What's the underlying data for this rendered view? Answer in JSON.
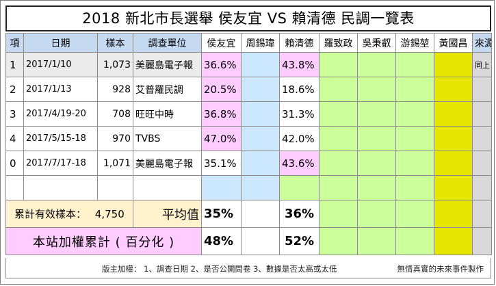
{
  "title": "2018  新北市長選舉   侯友宜 VS 賴清德   民調一覽表",
  "headers": [
    "項",
    "日期",
    "樣本",
    "調查單位",
    "侯友宜",
    "周錫瑋",
    "賴清德",
    "羅致政",
    "吳秉叡",
    "游錫堃",
    "黃國昌",
    "來源"
  ],
  "rows": [
    {
      "no": "1",
      "date": "2017/1/10",
      "sample": "1,073",
      "org": "美麗島電子報",
      "hou": "36.6%",
      "chou": "",
      "lai": "43.8%",
      "source": "同上"
    },
    {
      "no": "2",
      "date": "2017/1/13",
      "sample": "928",
      "org": "艾普羅民調",
      "hou": "20.5%",
      "chou": "",
      "lai": "18.6%",
      "source": ""
    },
    {
      "no": "3",
      "date": "2017/4/19-20",
      "sample": "708",
      "org": "旺旺中時",
      "hou": "36.8%",
      "chou": "",
      "lai": "31.3%",
      "source": ""
    },
    {
      "no": "4",
      "date": "2017/5/15-18",
      "sample": "970",
      "org": "TVBS",
      "hou": "47.0%",
      "chou": "",
      "lai": "42.0%",
      "source": ""
    },
    {
      "no": "0",
      "date": "2017/7/17-18",
      "sample": "1,071",
      "org": "美麗島電子報",
      "hou": "35.1%",
      "chou": "",
      "lai": "43.6%",
      "source": ""
    },
    {
      "no": "",
      "date": "",
      "sample": "",
      "org": "",
      "hou": "",
      "chou": "",
      "lai": "",
      "source": ""
    }
  ],
  "summary": {
    "total_label": "累計有效樣本：",
    "total_value": "4,750",
    "avg_label": "平均值",
    "avg_hou": "35%",
    "avg_lai": "36%",
    "weighted_label": "本站加權累計 ( 百分化 )",
    "weighted_hou": "48%",
    "weighted_lai": "52%"
  },
  "footer": {
    "note": "版主加權：  1、調查日期    2、是否公開問卷  3、數據是否太高或太低",
    "credit": "無情真實的未來事件製作"
  },
  "colors": {
    "header": "#c5d9f1",
    "hou": "#ffccff",
    "chou": "#cce8ff",
    "lai": "#ffccff",
    "green": "#ccff99",
    "yellow": "#e6e600",
    "summary": "#fff2cc"
  }
}
